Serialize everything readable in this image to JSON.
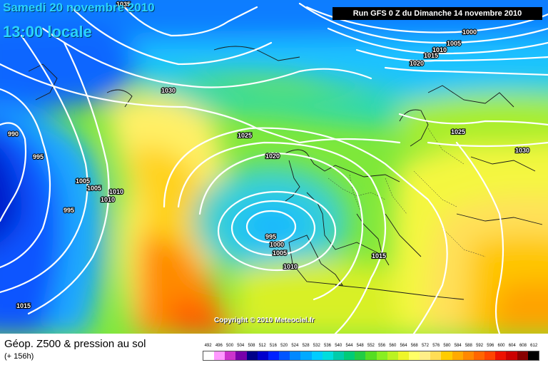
{
  "header": {
    "valid_date": "Samedi 20 novembre 2010",
    "local_time": "13:00 locale",
    "run_info": "Run GFS 0 Z du Dimanche 14 novembre 2010",
    "copyright": "Copyright © 2010 Meteociel.fr"
  },
  "footer": {
    "product_title": "Géop. Z500 & pression au sol",
    "lead_time": "(+ 156h)"
  },
  "legend": {
    "values": [
      "492",
      "496",
      "500",
      "504",
      "508",
      "512",
      "516",
      "520",
      "524",
      "528",
      "532",
      "536",
      "540",
      "544",
      "548",
      "552",
      "556",
      "560",
      "564",
      "568",
      "572",
      "576",
      "580",
      "584",
      "588",
      "592",
      "596",
      "600",
      "604",
      "608",
      "612"
    ],
    "colors": [
      "#ffffff",
      "#ff99ff",
      "#cc33cc",
      "#7700aa",
      "#000088",
      "#0000cc",
      "#0022ff",
      "#0055ff",
      "#0088ff",
      "#00aaff",
      "#00ccff",
      "#00dddd",
      "#00ccaa",
      "#00cc77",
      "#22cc44",
      "#55dd22",
      "#88ee22",
      "#bbf222",
      "#eef52a",
      "#ffff66",
      "#ffee88",
      "#ffdd55",
      "#ffcc00",
      "#ffaa00",
      "#ff8800",
      "#ff6600",
      "#ff4400",
      "#ee1100",
      "#cc0000",
      "#880000",
      "#000000"
    ]
  },
  "pressure_labels": [
    {
      "text": "1035"
    },
    {
      "text": "1000"
    },
    {
      "text": "1005"
    },
    {
      "text": "1010"
    },
    {
      "text": "1015"
    },
    {
      "text": "1020"
    },
    {
      "text": "1030"
    },
    {
      "text": "1025"
    },
    {
      "text": "1020"
    },
    {
      "text": "1025"
    },
    {
      "text": "1030"
    },
    {
      "text": "990"
    },
    {
      "text": "995"
    },
    {
      "text": "1005"
    },
    {
      "text": "1005"
    },
    {
      "text": "1010"
    },
    {
      "text": "1010"
    },
    {
      "text": "995"
    },
    {
      "text": "995"
    },
    {
      "text": "1000"
    },
    {
      "text": "1005"
    },
    {
      "text": "1010"
    },
    {
      "text": "1015"
    },
    {
      "text": "1015"
    }
  ]
}
